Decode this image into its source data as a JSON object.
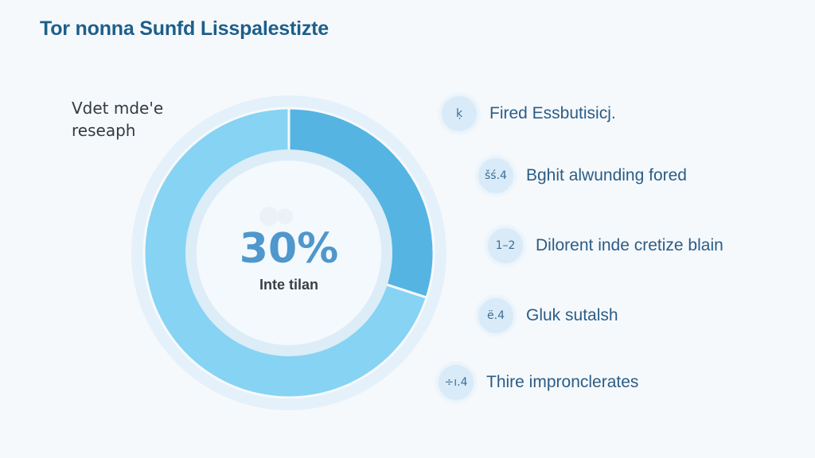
{
  "title": "Tor nonna Sunfd Lisspalestizte",
  "side_note": {
    "line1": "Vdet mde'e",
    "line2": "reseaph"
  },
  "chart_data": {
    "type": "pie",
    "variant": "donut",
    "slices": [
      {
        "value": 30,
        "color": "#56b4e3"
      },
      {
        "value": 70,
        "color": "#86d3f3"
      }
    ],
    "center_value": "30%",
    "center_label": "Inte tilan",
    "legend_placement": "right"
  },
  "legend": [
    {
      "badge": "ḳ",
      "label": "Fired Essbutisicj."
    },
    {
      "badge": "šś.4",
      "label": "Bghit alwunding fored"
    },
    {
      "badge": "1–2",
      "label": "Dilorent inde cretize blain"
    },
    {
      "badge": "ё.4",
      "label": "Gluk sutalsh"
    },
    {
      "badge": "÷ı.4",
      "label": "Thire impronclerates"
    }
  ],
  "colors": {
    "accent": "#56b4e3",
    "secondary": "#86d3f3",
    "title": "#1d5f8a",
    "legend_text": "#2b5d86"
  }
}
